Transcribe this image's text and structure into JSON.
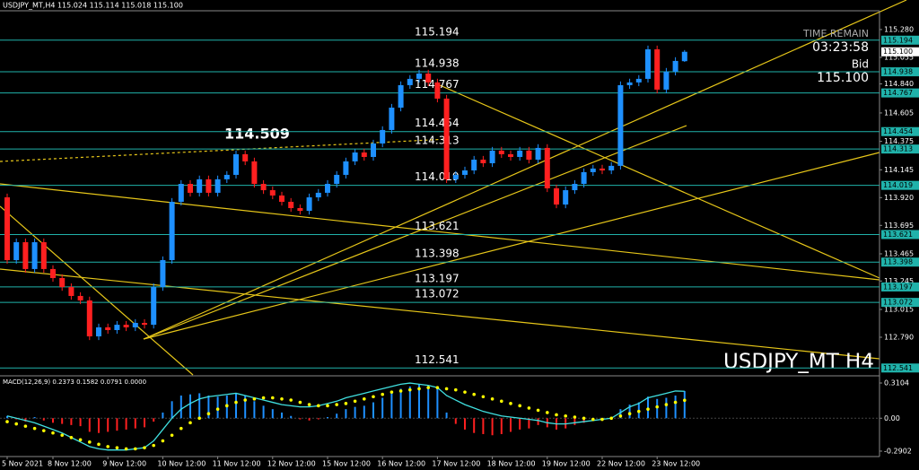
{
  "chart_data": [
    {
      "type": "candlestick",
      "title": "USDJPY_MT,H4  115.024 115.114 115.018 115.100",
      "watermark": "USDJPY_MT H4",
      "peak_label": "114.509",
      "info": {
        "time_remain_label": "TIME REMAIN",
        "time_remain": "03:23:58",
        "bid_label": "Bid",
        "bid": "115.100"
      },
      "last_price": {
        "value": 115.1,
        "label": "115.100"
      },
      "categories": [
        "5 Nov 2021",
        null,
        null,
        null,
        null,
        "8 Nov 12:00",
        null,
        null,
        null,
        null,
        null,
        "9 Nov 12:00",
        null,
        null,
        null,
        null,
        null,
        "10 Nov 12:00",
        null,
        null,
        null,
        null,
        null,
        "11 Nov 12:00",
        null,
        null,
        null,
        null,
        null,
        "12 Nov 12:00",
        null,
        null,
        null,
        null,
        null,
        "15 Nov 12:00",
        null,
        null,
        null,
        null,
        null,
        "16 Nov 12:00",
        null,
        null,
        null,
        null,
        null,
        "17 Nov 12:00",
        null,
        null,
        null,
        null,
        null,
        "18 Nov 12:00",
        null,
        null,
        null,
        null,
        null,
        "19 Nov 12:00",
        null,
        null,
        null,
        null,
        null,
        "22 Nov 12:00",
        null,
        null,
        null,
        null,
        null,
        "23 Nov 12:00",
        null,
        null,
        null
      ],
      "open": [
        113.922,
        113.414,
        113.559,
        113.342,
        113.559,
        113.342,
        113.269,
        113.196,
        113.124,
        113.088,
        112.797,
        112.87,
        112.848,
        112.891,
        112.87,
        112.906,
        112.891,
        113.196,
        113.414,
        113.886,
        114.031,
        113.959,
        114.068,
        113.959,
        114.068,
        114.104,
        114.271,
        114.213,
        114.031,
        113.98,
        113.937,
        113.886,
        113.835,
        113.813,
        113.922,
        113.959,
        114.031,
        114.104,
        114.213,
        114.285,
        114.249,
        114.358,
        114.467,
        114.648,
        114.83,
        114.881,
        114.924,
        114.852,
        114.721,
        114.068,
        114.104,
        114.14,
        114.227,
        114.198,
        114.3,
        114.271,
        114.249,
        114.3,
        114.227,
        114.322,
        113.995,
        113.864,
        113.98,
        114.031,
        114.126,
        114.155,
        114.14,
        114.177,
        114.83,
        114.852,
        114.881,
        115.12,
        114.794,
        114.939,
        115.024
      ],
      "high": [
        113.952,
        113.589,
        113.589,
        113.589,
        113.589,
        113.372,
        113.299,
        113.226,
        113.154,
        113.118,
        112.9,
        112.9,
        112.921,
        112.921,
        112.936,
        112.936,
        113.226,
        113.444,
        113.916,
        114.061,
        114.061,
        114.098,
        114.098,
        114.098,
        114.134,
        114.301,
        114.301,
        114.243,
        114.061,
        114.01,
        113.967,
        113.916,
        113.865,
        113.952,
        113.989,
        114.061,
        114.134,
        114.243,
        114.315,
        114.315,
        114.388,
        114.497,
        114.678,
        114.86,
        114.911,
        114.954,
        114.954,
        114.882,
        114.751,
        114.134,
        114.17,
        114.257,
        114.257,
        114.33,
        114.33,
        114.301,
        114.33,
        114.33,
        114.352,
        114.352,
        114.025,
        114.01,
        114.061,
        114.156,
        114.185,
        114.185,
        114.207,
        114.86,
        114.882,
        114.911,
        115.15,
        115.15,
        114.969,
        115.056,
        115.114
      ],
      "low": [
        113.384,
        113.384,
        113.312,
        113.312,
        113.312,
        113.239,
        113.166,
        113.094,
        113.058,
        112.767,
        112.767,
        112.818,
        112.818,
        112.84,
        112.84,
        112.861,
        112.861,
        113.166,
        113.384,
        113.856,
        113.929,
        113.929,
        113.929,
        113.929,
        114.038,
        114.074,
        114.183,
        114.001,
        113.95,
        113.907,
        113.856,
        113.805,
        113.783,
        113.783,
        113.892,
        113.929,
        114.001,
        114.074,
        114.183,
        114.219,
        114.219,
        114.328,
        114.437,
        114.618,
        114.8,
        114.851,
        114.822,
        114.691,
        114.038,
        114.038,
        114.074,
        114.11,
        114.168,
        114.168,
        114.241,
        114.219,
        114.219,
        114.197,
        114.197,
        113.965,
        113.834,
        113.834,
        113.95,
        114.001,
        114.096,
        114.11,
        114.11,
        114.147,
        114.8,
        114.822,
        114.851,
        114.764,
        114.764,
        114.909,
        115.018
      ],
      "close": [
        113.414,
        113.559,
        113.342,
        113.559,
        113.342,
        113.269,
        113.196,
        113.124,
        113.088,
        112.797,
        112.87,
        112.848,
        112.891,
        112.87,
        112.906,
        112.891,
        113.196,
        113.414,
        113.886,
        114.031,
        113.959,
        114.068,
        113.959,
        114.068,
        114.104,
        114.271,
        114.213,
        114.031,
        113.98,
        113.937,
        113.886,
        113.835,
        113.813,
        113.922,
        113.959,
        114.031,
        114.104,
        114.213,
        114.285,
        114.249,
        114.358,
        114.467,
        114.648,
        114.83,
        114.881,
        114.924,
        114.852,
        114.721,
        114.068,
        114.104,
        114.14,
        114.227,
        114.198,
        114.3,
        114.271,
        114.249,
        114.3,
        114.227,
        114.322,
        113.995,
        113.864,
        113.98,
        114.031,
        114.126,
        114.155,
        114.14,
        114.177,
        114.83,
        114.852,
        114.881,
        115.12,
        114.794,
        114.939,
        115.026,
        115.1
      ],
      "bull_color": "#1e90ff",
      "bear_color": "#ff2020",
      "levels": [
        115.194,
        114.938,
        114.767,
        114.454,
        114.313,
        114.019,
        113.621,
        113.398,
        113.197,
        113.072,
        112.541
      ],
      "level_color": "#20b2aa",
      "ylim": [
        112.485,
        115.432
      ],
      "yticks": [
        {
          "value": 115.28,
          "label": "115.280"
        },
        115.055,
        {
          "value": 114.84,
          "label": "114.840"
        },
        114.605,
        114.375,
        114.145,
        {
          "value": 113.92,
          "label": "113.920"
        },
        113.695,
        113.465,
        113.245,
        113.015,
        {
          "value": 112.79,
          "label": "112.790"
        }
      ]
    },
    {
      "type": "macd",
      "title": "MACD(12,26,9) 0.2373 0.1582 0.0791 0.0000",
      "histogram": [
        0.02,
        -0.01,
        -0.03,
        0.01,
        -0.02,
        -0.04,
        -0.05,
        -0.06,
        -0.07,
        -0.12,
        -0.13,
        -0.12,
        -0.11,
        -0.1,
        -0.09,
        -0.08,
        -0.03,
        0.05,
        0.15,
        0.2,
        0.21,
        0.22,
        0.2,
        0.19,
        0.2,
        0.22,
        0.2,
        0.15,
        0.11,
        0.08,
        0.05,
        0.02,
        -0.01,
        -0.02,
        -0.01,
        0.01,
        0.04,
        0.08,
        0.1,
        0.11,
        0.14,
        0.18,
        0.22,
        0.26,
        0.28,
        0.3,
        0.29,
        0.26,
        0.05,
        -0.05,
        -0.1,
        -0.13,
        -0.14,
        -0.15,
        -0.14,
        -0.12,
        -0.1,
        -0.09,
        -0.06,
        -0.08,
        -0.1,
        -0.09,
        -0.06,
        -0.04,
        -0.02,
        -0.01,
        0.01,
        0.08,
        0.12,
        0.14,
        0.19,
        0.17,
        0.18,
        0.2,
        0.24
      ],
      "macd_line": [
        0.02,
        0.0,
        -0.02,
        -0.04,
        -0.07,
        -0.1,
        -0.13,
        -0.17,
        -0.21,
        -0.25,
        -0.27,
        -0.28,
        -0.28,
        -0.28,
        -0.27,
        -0.26,
        -0.2,
        -0.1,
        0.0,
        0.08,
        0.13,
        0.17,
        0.19,
        0.2,
        0.21,
        0.22,
        0.2,
        0.18,
        0.16,
        0.14,
        0.12,
        0.11,
        0.1,
        0.1,
        0.11,
        0.13,
        0.15,
        0.18,
        0.2,
        0.22,
        0.24,
        0.26,
        0.28,
        0.3,
        0.31,
        0.3,
        0.29,
        0.27,
        0.2,
        0.16,
        0.12,
        0.09,
        0.06,
        0.04,
        0.02,
        0.01,
        0.0,
        -0.01,
        -0.02,
        -0.04,
        -0.05,
        -0.05,
        -0.04,
        -0.03,
        -0.02,
        -0.01,
        0.0,
        0.05,
        0.1,
        0.13,
        0.18,
        0.2,
        0.22,
        0.24,
        0.2373
      ],
      "signal": [
        -0.03,
        -0.05,
        -0.07,
        -0.09,
        -0.11,
        -0.13,
        -0.15,
        -0.17,
        -0.19,
        -0.21,
        -0.23,
        -0.25,
        -0.26,
        -0.27,
        -0.27,
        -0.26,
        -0.24,
        -0.2,
        -0.15,
        -0.09,
        -0.04,
        0.0,
        0.04,
        0.08,
        0.11,
        0.14,
        0.16,
        0.17,
        0.18,
        0.18,
        0.17,
        0.16,
        0.14,
        0.12,
        0.11,
        0.11,
        0.12,
        0.13,
        0.15,
        0.17,
        0.19,
        0.21,
        0.23,
        0.24,
        0.25,
        0.26,
        0.27,
        0.27,
        0.26,
        0.25,
        0.23,
        0.21,
        0.19,
        0.17,
        0.15,
        0.13,
        0.11,
        0.09,
        0.07,
        0.05,
        0.03,
        0.02,
        0.01,
        0.0,
        -0.01,
        -0.01,
        0.0,
        0.02,
        0.04,
        0.06,
        0.08,
        0.1,
        0.12,
        0.14,
        0.1582
      ],
      "up_color": "#1e90ff",
      "down_color": "#ff2020",
      "line_color": "#40e0e0",
      "signal_color": "#ffff00",
      "ylim": [
        -0.33,
        0.358
      ],
      "yticks": [
        0.3104,
        {
          "value": 0,
          "label": "0.00"
        },
        -0.2902
      ]
    }
  ]
}
